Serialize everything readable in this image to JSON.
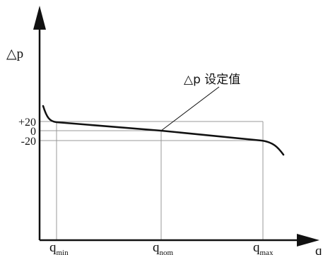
{
  "axes": {
    "y_label": "△p",
    "x_label": "q"
  },
  "y_ticks": [
    {
      "label": "+20"
    },
    {
      "label": "0"
    },
    {
      "label": "-20"
    }
  ],
  "x_ticks": [
    {
      "base": "q",
      "sub": "min"
    },
    {
      "base": "q",
      "sub": "nom"
    },
    {
      "base": "q",
      "sub": "max"
    }
  ],
  "annotation": {
    "text": "△p 设定值"
  },
  "colors": {
    "curve": "#111111",
    "axis": "#111111",
    "guide": "#999999"
  }
}
